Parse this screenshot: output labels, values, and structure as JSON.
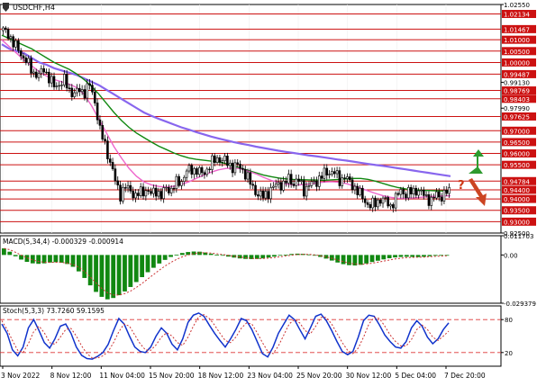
{
  "chart_data": [
    {
      "type": "candlestick",
      "title": "USDCHF,H4",
      "symbol": "USDCHF",
      "timeframe": "H4",
      "ylim": [
        0.925,
        1.0255
      ],
      "y_ticks": [
        {
          "label": "1.02550",
          "value": 1.0255
        },
        {
          "label": "1.02134",
          "value": 1.02134,
          "level": true
        },
        {
          "label": "1.01467",
          "value": 1.01467,
          "level": true
        },
        {
          "label": "1.01000",
          "value": 1.01,
          "level": true
        },
        {
          "label": "1.00500",
          "value": 1.005,
          "level": true
        },
        {
          "label": "1.00000",
          "value": 1.0,
          "level": true
        },
        {
          "label": "0.99487",
          "value": 0.99487,
          "level": true
        },
        {
          "label": "0.99130",
          "value": 0.9913
        },
        {
          "label": "0.98769",
          "value": 0.98769,
          "level": true
        },
        {
          "label": "0.98403",
          "value": 0.98403,
          "level": true
        },
        {
          "label": "0.97990",
          "value": 0.9799
        },
        {
          "label": "0.97625",
          "value": 0.97625,
          "level": true
        },
        {
          "label": "0.97000",
          "value": 0.97,
          "level": true
        },
        {
          "label": "0.96500",
          "value": 0.965,
          "level": true
        },
        {
          "label": "0.96000",
          "value": 0.96,
          "level": true
        },
        {
          "label": "0.95500",
          "value": 0.955,
          "level": true
        },
        {
          "label": "0.94784",
          "value": 0.94784,
          "level": true
        },
        {
          "label": "0.94400",
          "value": 0.944,
          "level": true
        },
        {
          "label": "0.94000",
          "value": 0.94,
          "level": true
        },
        {
          "label": "0.93500",
          "value": 0.935,
          "level": true
        },
        {
          "label": "0.93000",
          "value": 0.93,
          "level": true
        },
        {
          "label": "0.92500",
          "value": 0.925
        }
      ],
      "last_price": 0.9417,
      "price_path": [
        1.014,
        1.013,
        1.008,
        1.006,
        1.002,
        0.999,
        0.9955,
        0.994,
        0.9975,
        0.993,
        0.9895,
        0.9905,
        0.992,
        0.988,
        0.986,
        0.988,
        0.987,
        0.99,
        0.983,
        0.97,
        0.964,
        0.956,
        0.948,
        0.942,
        0.945,
        0.944,
        0.941,
        0.943,
        0.944,
        0.942,
        0.944,
        0.941,
        0.945,
        0.944,
        0.947,
        0.948,
        0.952,
        0.953,
        0.9525,
        0.951,
        0.953,
        0.956,
        0.958,
        0.957,
        0.956,
        0.954,
        0.9545,
        0.953,
        0.949,
        0.945,
        0.942,
        0.941,
        0.943,
        0.945,
        0.947,
        0.946,
        0.949,
        0.947,
        0.948,
        0.944,
        0.946,
        0.947,
        0.949,
        0.951,
        0.952,
        0.9515,
        0.948,
        0.95,
        0.947,
        0.945,
        0.942,
        0.939,
        0.937,
        0.938,
        0.94,
        0.939,
        0.937,
        0.94,
        0.944,
        0.942,
        0.943,
        0.944,
        0.9425,
        0.941,
        0.939,
        0.942,
        0.941,
        0.943
      ],
      "series": [
        {
          "color": "#8866ee",
          "values": [
            1.008,
            1.006,
            1.005,
            1.004,
            1.002,
            1.0,
            0.999,
            0.9975,
            0.9965,
            0.9955,
            0.9945,
            0.993,
            0.9915,
            0.99,
            0.988,
            0.986,
            0.984,
            0.982,
            0.98,
            0.978,
            0.9765,
            0.9752,
            0.974,
            0.9727,
            0.9715,
            0.9705,
            0.9694,
            0.9684,
            0.9674,
            0.9666,
            0.9658,
            0.965,
            0.9643,
            0.9637,
            0.963,
            0.9624,
            0.9618,
            0.9612,
            0.9607,
            0.9602,
            0.9597,
            0.9592,
            0.9588,
            0.9583,
            0.9578,
            0.9573,
            0.9569,
            0.9564,
            0.9559,
            0.9554,
            0.9549,
            0.9545,
            0.954,
            0.9535,
            0.953,
            0.9525,
            0.952,
            0.9515,
            0.951,
            0.9505,
            0.95
          ]
        },
        {
          "color": "#118811",
          "values": [
            1.012,
            1.0105,
            1.009,
            1.0075,
            1.006,
            1.004,
            1.002,
            1.0,
            0.9985,
            0.997,
            0.995,
            0.9925,
            0.9895,
            0.986,
            0.982,
            0.978,
            0.9745,
            0.9715,
            0.969,
            0.967,
            0.965,
            0.9632,
            0.9617,
            0.9602,
            0.959,
            0.958,
            0.9574,
            0.957,
            0.9566,
            0.9562,
            0.9555,
            0.9545,
            0.9535,
            0.9525,
            0.9515,
            0.9505,
            0.9498,
            0.9492,
            0.9488,
            0.9486,
            0.9485,
            0.9484,
            0.9483,
            0.9482,
            0.9484,
            0.9486,
            0.9488,
            0.949,
            0.949,
            0.9486,
            0.9478,
            0.9468,
            0.9458,
            0.945,
            0.9444,
            0.944,
            0.9438,
            0.9437,
            0.9436,
            0.9435,
            0.9434
          ]
        },
        {
          "color": "#ee66cc",
          "values": [
            1.01,
            1.007,
            1.004,
            1.001,
            0.9985,
            0.996,
            0.994,
            0.9925,
            0.9915,
            0.9905,
            0.989,
            0.986,
            0.981,
            0.975,
            0.969,
            0.963,
            0.958,
            0.9535,
            0.95,
            0.9475,
            0.9462,
            0.9455,
            0.9452,
            0.9456,
            0.9464,
            0.9475,
            0.949,
            0.9505,
            0.9518,
            0.9528,
            0.9534,
            0.9536,
            0.9532,
            0.9522,
            0.951,
            0.9495,
            0.9482,
            0.9472,
            0.9465,
            0.9462,
            0.9462,
            0.9465,
            0.947,
            0.9474,
            0.9476,
            0.9474,
            0.9468,
            0.9458,
            0.9447,
            0.9435,
            0.9424,
            0.9414,
            0.9407,
            0.9403,
            0.9402,
            0.9404,
            0.9407,
            0.941,
            0.9412,
            0.9413,
            0.9414
          ]
        }
      ],
      "annotations": {
        "up_arrow_color": "#2e9a2e",
        "down_arrow_color": "#cc4422",
        "question_mark": "?",
        "question_color": "#cc3311"
      }
    },
    {
      "type": "bar",
      "title": "MACD(5,34,4) -0.000329 -0.000914",
      "ylim": [
        -0.029379,
        0.011703
      ],
      "y_ticks": [
        {
          "label": "0.011703",
          "value": 0.011703
        },
        {
          "label": "0.00",
          "value": 0
        },
        {
          "label": "-0.029379",
          "value": -0.029379
        }
      ],
      "bar_color": "#118811",
      "signal_color": "#cc3333",
      "values": [
        0.004,
        0.002,
        -0.0008,
        -0.0028,
        -0.0042,
        -0.0051,
        -0.0054,
        -0.0051,
        -0.0046,
        -0.0044,
        -0.0047,
        -0.0055,
        -0.0072,
        -0.01,
        -0.014,
        -0.0185,
        -0.0225,
        -0.0255,
        -0.027,
        -0.0262,
        -0.0245,
        -0.0222,
        -0.0195,
        -0.0165,
        -0.0135,
        -0.0105,
        -0.0078,
        -0.0052,
        -0.003,
        -0.0012,
        0.0002,
        0.0012,
        0.0018,
        0.0021,
        0.002,
        0.0015,
        0.0008,
        0.0002,
        -0.0004,
        -0.001,
        -0.0016,
        -0.0021,
        -0.0024,
        -0.0025,
        -0.0024,
        -0.0021,
        -0.0016,
        -0.001,
        -0.0004,
        0.0002,
        0.0006,
        0.0008,
        0.0007,
        0.0003,
        -0.0004,
        -0.0012,
        -0.0022,
        -0.0034,
        -0.0046,
        -0.0056,
        -0.0062,
        -0.0064,
        -0.006,
        -0.0052,
        -0.0043,
        -0.0035,
        -0.0027,
        -0.002,
        -0.0015,
        -0.0012,
        -0.0011,
        -0.0012,
        -0.0013,
        -0.0011,
        -0.0008,
        -0.0005,
        -0.0004,
        -0.0003
      ]
    },
    {
      "type": "line",
      "title": "Stoch(5,3,3) 73.7260 59.1595",
      "ylim": [
        0,
        100
      ],
      "y_ticks": [
        {
          "label": "80",
          "value": 80
        },
        {
          "label": "20",
          "value": 20
        }
      ],
      "levels": [
        80,
        20
      ],
      "level_color": "#dd3333",
      "series": [
        {
          "color": "#1133cc",
          "values": [
            72,
            55,
            25,
            14,
            30,
            65,
            80,
            60,
            38,
            28,
            45,
            68,
            72,
            55,
            30,
            15,
            9,
            8,
            13,
            20,
            35,
            60,
            82,
            72,
            50,
            30,
            22,
            20,
            30,
            50,
            65,
            55,
            35,
            25,
            45,
            75,
            88,
            92,
            86,
            70,
            55,
            42,
            30,
            45,
            62,
            82,
            78,
            62,
            40,
            18,
            12,
            30,
            55,
            72,
            88,
            80,
            62,
            45,
            65,
            86,
            90,
            78,
            60,
            40,
            22,
            16,
            22,
            48,
            78,
            88,
            86,
            70,
            52,
            40,
            30,
            28,
            40,
            65,
            78,
            68,
            48,
            36,
            45,
            62,
            74
          ]
        },
        {
          "color": "#cc3333",
          "values": [
            78,
            62,
            42,
            24,
            20,
            36,
            58,
            68,
            56,
            38,
            35,
            48,
            62,
            64,
            50,
            32,
            18,
            10,
            10,
            14,
            22,
            38,
            58,
            72,
            68,
            52,
            36,
            25,
            24,
            34,
            48,
            56,
            50,
            38,
            33,
            48,
            68,
            85,
            89,
            82,
            70,
            55,
            42,
            38,
            48,
            64,
            74,
            72,
            56,
            38,
            22,
            18,
            32,
            52,
            72,
            80,
            74,
            60,
            54,
            68,
            84,
            84,
            72,
            55,
            38,
            24,
            18,
            28,
            48,
            72,
            84,
            82,
            68,
            52,
            40,
            32,
            32,
            44,
            62,
            70,
            62,
            48,
            42,
            50,
            59
          ]
        }
      ]
    }
  ],
  "x_axis": {
    "labels": [
      "3 Nov 2022",
      "8 Nov 12:00",
      "11 Nov 04:00",
      "15 Nov 20:00",
      "18 Nov 12:00",
      "23 Nov 04:00",
      "25 Nov 20:00",
      "30 Nov 12:00",
      "5 Dec 04:00",
      "7 Dec 20:00"
    ]
  },
  "ui": {
    "icon_name": "chart-window-arrow-icon",
    "price_badge_color": "#cc1111",
    "grid_color": "#dddddd",
    "border_color": "#000000"
  }
}
